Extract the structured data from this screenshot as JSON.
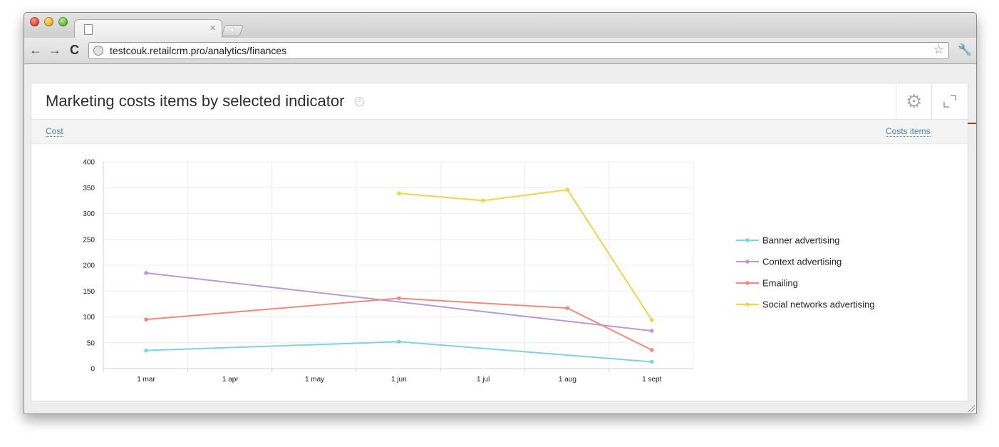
{
  "browser": {
    "tab_close": "×",
    "new_tab": "+",
    "url": "testcouk.retailcrm.pro/analytics/finances",
    "back_icon": "←",
    "forward_icon": "→",
    "reload_icon": "C",
    "star_icon": "☆",
    "wrench_icon": "🔧"
  },
  "panel": {
    "title": "Marketing costs items by selected indicator",
    "help": "?",
    "gear_icon": "⚙",
    "filter_left": "Cost",
    "filter_right": "Costs items"
  },
  "colors": {
    "banner": "#7fd3dc",
    "context": "#b999d8",
    "emailing": "#ee8a7e",
    "social": "#f7d148",
    "underline_accent": "#e02424"
  },
  "chart_data": {
    "type": "line",
    "x": [
      "1 mar",
      "1 apr",
      "1 may",
      "1 jun",
      "1 jul",
      "1 aug",
      "1 sept"
    ],
    "ylim": [
      0,
      400
    ],
    "yticks": [
      0,
      50,
      100,
      150,
      200,
      250,
      300,
      350,
      400
    ],
    "grid": true,
    "legend_position": "right",
    "series": [
      {
        "name": "Banner advertising",
        "color": "#7fd3dc",
        "values": [
          35,
          null,
          null,
          52,
          null,
          null,
          13
        ]
      },
      {
        "name": "Context advertising",
        "color": "#b999d8",
        "values": [
          185,
          null,
          null,
          null,
          null,
          null,
          73
        ]
      },
      {
        "name": "Emailing",
        "color": "#ee8a7e",
        "values": [
          95,
          null,
          null,
          136,
          null,
          117,
          36
        ]
      },
      {
        "name": "Social networks advertising",
        "color": "#f7d148",
        "values": [
          null,
          null,
          null,
          339,
          325,
          346,
          94
        ]
      }
    ]
  }
}
